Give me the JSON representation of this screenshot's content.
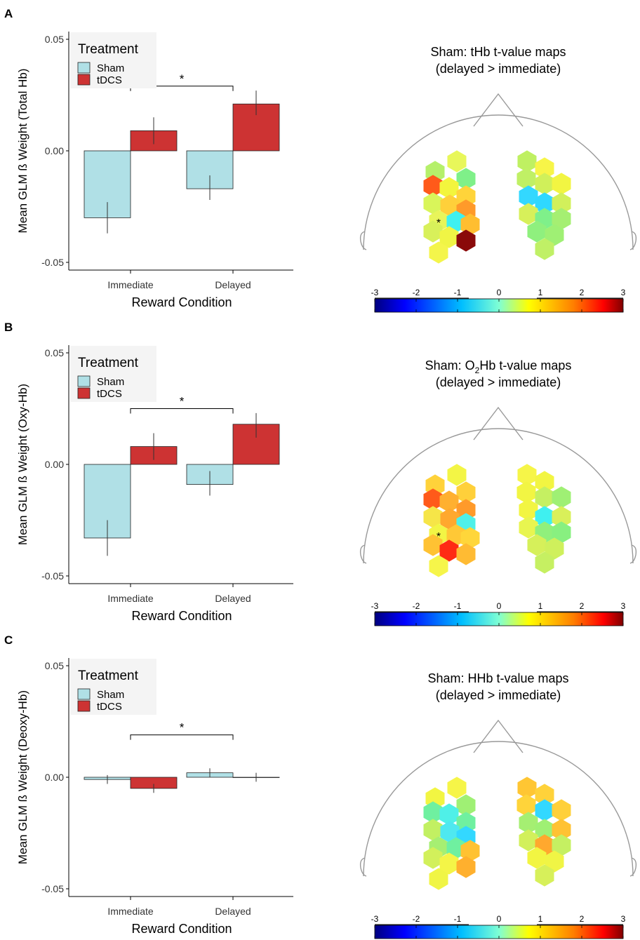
{
  "chart_data": [
    {
      "type": "bar",
      "panel_label": "A",
      "ylabel": "Mean GLM ß Weight (Total Hb)",
      "xlabel": "Reward Condition",
      "ylim": [
        -0.05,
        0.05
      ],
      "yticks": [
        "0.05",
        "0.00",
        "-0.05"
      ],
      "ytick_values": [
        0.05,
        0.0,
        -0.05
      ],
      "categories": [
        "Immediate",
        "Delayed"
      ],
      "legend_title": "Treatment",
      "legend_position": "top-left",
      "series": [
        {
          "name": "Sham",
          "color": "#b0e0e6",
          "values": [
            -0.03,
            -0.017
          ],
          "err_low": [
            -0.037,
            -0.022
          ],
          "err_high": [
            -0.023,
            -0.011
          ]
        },
        {
          "name": "tDCS",
          "color": "#cd3333",
          "values": [
            0.009,
            0.021
          ],
          "err_low": [
            0.003,
            0.016
          ],
          "err_high": [
            0.015,
            0.027
          ]
        }
      ],
      "significance": {
        "label": "*",
        "between": [
          "Immediate",
          "Delayed"
        ],
        "y": 0.029
      },
      "map_title_prefix": "Sham: tHb t-value maps",
      "map_subtitle": "(delayed > immediate)",
      "map_sig_marker": "*",
      "map_colors": {
        "left": [
          "#e8f75a",
          "#b5f06a",
          "#7ff089",
          "#ff5a1a",
          "#f3f53d",
          "#ffd43a",
          "#d9f55a",
          "#ffd03a",
          "#ff9a2a",
          "#e8f55a",
          "#3ff0f0",
          "#ffbe30",
          "#d8f05a",
          "#f0f545",
          "#8a0a0a",
          "#f4f54b"
        ],
        "right": [
          "#bff062",
          "#f7f548",
          "#c0f065",
          "#d0f05a",
          "#f2f542",
          "#33d8ff",
          "#2fd8ff",
          "#d2f05b",
          "#d7f05a",
          "#7ff08a",
          "#a5ef72",
          "#8ff07e",
          "#9ff074",
          "#c0f066"
        ]
      },
      "colorbar": {
        "ticks": [
          "-3",
          "-2",
          "-1",
          "0",
          "1",
          "2",
          "3"
        ],
        "min": -3,
        "max": 3
      }
    },
    {
      "type": "bar",
      "panel_label": "B",
      "ylabel": "Mean GLM ß Weight (Oxy-Hb)",
      "xlabel": "Reward Condition",
      "ylim": [
        -0.05,
        0.05
      ],
      "yticks": [
        "0.05",
        "0.00",
        "-0.05"
      ],
      "ytick_values": [
        0.05,
        0.0,
        -0.05
      ],
      "categories": [
        "Immediate",
        "Delayed"
      ],
      "legend_title": "Treatment",
      "legend_position": "top-left",
      "series": [
        {
          "name": "Sham",
          "color": "#b0e0e6",
          "values": [
            -0.033,
            -0.009
          ],
          "err_low": [
            -0.041,
            -0.014
          ],
          "err_high": [
            -0.025,
            -0.003
          ]
        },
        {
          "name": "tDCS",
          "color": "#cd3333",
          "values": [
            0.008,
            0.018
          ],
          "err_low": [
            0.002,
            0.012
          ],
          "err_high": [
            0.014,
            0.023
          ]
        }
      ],
      "significance": {
        "label": "*",
        "between": [
          "Immediate",
          "Delayed"
        ],
        "y": 0.025
      },
      "map_title_prefix": "Sham: O",
      "map_title_sub": "2",
      "map_title_suffix": "Hb t-value maps",
      "map_subtitle": "(delayed > immediate)",
      "map_sig_marker": "*",
      "map_colors": {
        "left": [
          "#f3f545",
          "#ffd23a",
          "#ffd03a",
          "#ff5a1a",
          "#ffb030",
          "#ff9a2a",
          "#f6e548",
          "#ffa82e",
          "#4ff0e8",
          "#f2f545",
          "#ffc836",
          "#ffd63a",
          "#ffc233",
          "#ff2a14",
          "#ffbb33",
          "#f6f54a"
        ],
        "right": [
          "#f6f548",
          "#f2f542",
          "#f2f543",
          "#c5f062",
          "#9ff074",
          "#f2f542",
          "#3ff0f0",
          "#d9f05a",
          "#e8f550",
          "#90f07c",
          "#88f080",
          "#d6f05a",
          "#cff05c",
          "#c6f062"
        ]
      },
      "colorbar": {
        "ticks": [
          "-3",
          "-2",
          "-1",
          "0",
          "1",
          "2",
          "3"
        ],
        "min": -3,
        "max": 3
      }
    },
    {
      "type": "bar",
      "panel_label": "C",
      "ylabel": "Mean GLM ß Weight (Deoxy-Hb)",
      "xlabel": "Reward Condition",
      "ylim": [
        -0.05,
        0.05
      ],
      "yticks": [
        "0.05",
        "0.00",
        "-0.05"
      ],
      "ytick_values": [
        0.05,
        0.0,
        -0.05
      ],
      "categories": [
        "Immediate",
        "Delayed"
      ],
      "legend_title": "Treatment",
      "legend_position": "top-left",
      "series": [
        {
          "name": "Sham",
          "color": "#b0e0e6",
          "values": [
            -0.001,
            0.002
          ],
          "err_low": [
            -0.003,
            0.0
          ],
          "err_high": [
            0.001,
            0.004
          ]
        },
        {
          "name": "tDCS",
          "color": "#cd3333",
          "values": [
            -0.005,
            0.0
          ],
          "err_low": [
            -0.007,
            -0.002
          ],
          "err_high": [
            -0.003,
            0.002
          ]
        }
      ],
      "significance": {
        "label": "*",
        "between": [
          "Immediate",
          "Delayed"
        ],
        "y": 0.019
      },
      "map_title_prefix": "Sham: HHb t-value maps",
      "map_subtitle": "(delayed > immediate)",
      "map_sig_marker": "",
      "map_colors": {
        "left": [
          "#f6f548",
          "#f2f542",
          "#9ff074",
          "#6ff0a0",
          "#4ff0e8",
          "#6ff0a0",
          "#c2f062",
          "#4fe8f0",
          "#33d8ff",
          "#a6ef72",
          "#6ff0a0",
          "#ffc232",
          "#d2f05b",
          "#f4f547",
          "#ffb02e",
          "#f0f545"
        ],
        "right": [
          "#ffc633",
          "#ffd23a",
          "#ffd43a",
          "#33d8ff",
          "#ffd03a",
          "#a5ef72",
          "#9ff074",
          "#ffc233",
          "#d2f05b",
          "#ffa82e",
          "#c5f062",
          "#f2f542",
          "#f0f545",
          "#d7f05a"
        ]
      },
      "colorbar": {
        "ticks": [
          "-3",
          "-2",
          "-1",
          "0",
          "1",
          "2",
          "3"
        ],
        "min": -3,
        "max": 3
      }
    }
  ]
}
